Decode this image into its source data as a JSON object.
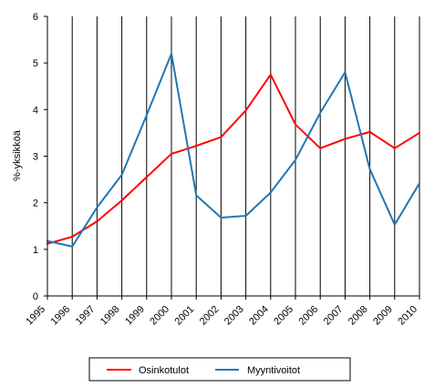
{
  "chart_data": {
    "type": "line",
    "title": "",
    "xlabel": "",
    "ylabel": "%-yksikköä",
    "x": [
      "1995",
      "1996",
      "1997",
      "1998",
      "1999",
      "2000",
      "2001",
      "2002",
      "2003",
      "2004",
      "2005",
      "2006",
      "2007",
      "2008",
      "2009",
      "2010"
    ],
    "ylim": [
      0,
      6
    ],
    "yticks": [
      "0",
      "1",
      "2",
      "3",
      "4",
      "5",
      "6"
    ],
    "grid": "vertical lines at each year",
    "legend_position": "bottom",
    "series": [
      {
        "name": "Osinkotulot",
        "color": "#ff0000",
        "values": [
          1.12,
          1.27,
          1.6,
          2.05,
          2.55,
          3.05,
          3.22,
          3.41,
          3.98,
          4.75,
          3.68,
          3.17,
          3.37,
          3.52,
          3.17,
          3.5
        ]
      },
      {
        "name": "Myyntivoitot",
        "color": "#1f77b4",
        "values": [
          1.18,
          1.06,
          1.9,
          2.6,
          3.88,
          5.2,
          2.16,
          1.68,
          1.72,
          2.22,
          2.92,
          3.93,
          4.8,
          2.72,
          1.53,
          2.42
        ]
      }
    ]
  }
}
